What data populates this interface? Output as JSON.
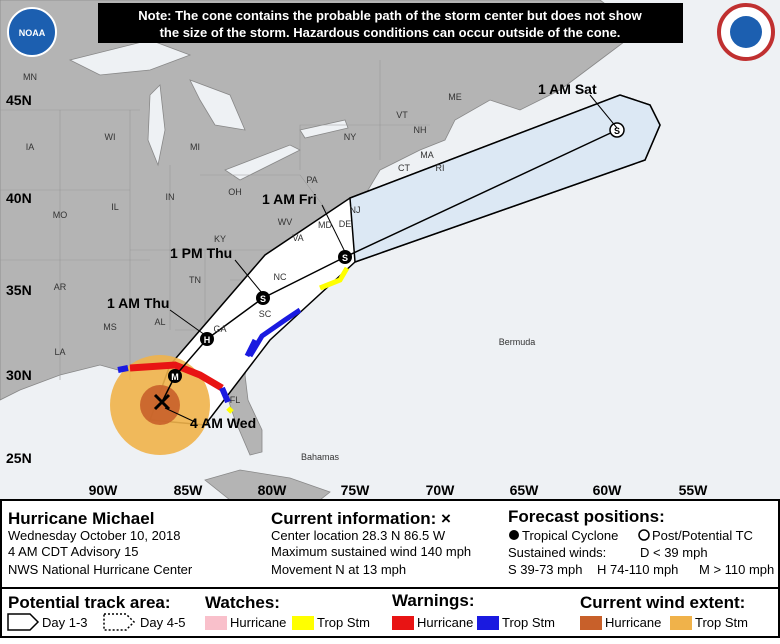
{
  "note": [
    "Note: The cone contains the probable path of the storm center but does not show",
    "the size of the storm. Hazardous conditions can occur outside of the cone."
  ],
  "logos": {
    "noaa": "NOAA"
  },
  "map": {
    "lat_labels": [
      "45N",
      "40N",
      "35N",
      "30N",
      "25N"
    ],
    "lon_labels": [
      "90W",
      "85W",
      "80W",
      "75W",
      "70W",
      "65W",
      "60W",
      "55W"
    ],
    "state_labels": [
      "MN",
      "IA",
      "WI",
      "MI",
      "IL",
      "IN",
      "OH",
      "PA",
      "NY",
      "VT",
      "NH",
      "ME",
      "MA",
      "CT",
      "RI",
      "NJ",
      "DE",
      "MD",
      "WV",
      "VA",
      "KY",
      "MO",
      "TN",
      "NC",
      "SC",
      "GA",
      "AL",
      "MS",
      "AR",
      "LA",
      "FL"
    ],
    "places": [
      "Bermuda",
      "Bahamas"
    ],
    "forecast_times": [
      "1 AM Sat",
      "1 AM Fri",
      "1 PM Thu",
      "1 AM Thu",
      "4 AM Wed"
    ],
    "points": [
      "M",
      "H",
      "S",
      "S",
      "S"
    ]
  },
  "storm": {
    "name": "Hurricane Michael",
    "date": "Wednesday October 10, 2018",
    "advisory": "4 AM CDT Advisory 15",
    "center": "NWS National Hurricane Center"
  },
  "current": {
    "title": "Current information: ×",
    "lines": [
      "Center location 28.3 N 86.5 W",
      "Maximum sustained wind 140 mph",
      "Movement N at 13 mph"
    ]
  },
  "forecast": {
    "title": "Forecast positions:",
    "tropical": "Tropical Cyclone",
    "post": "Post/Potential TC",
    "winds_title": "Sustained winds:",
    "d": "D < 39 mph",
    "s": "S 39-73 mph",
    "h": "H 74-110 mph",
    "m": "M > 110 mph"
  },
  "legend": {
    "track_title": "Potential track area:",
    "day13": "Day 1-3",
    "day45": "Day 4-5",
    "watches_title": "Watches:",
    "watch_hurricane": "Hurricane",
    "watch_ts": "Trop Stm",
    "warnings_title": "Warnings:",
    "warn_hurricane": "Hurricane",
    "warn_ts": "Trop Stm",
    "wind_title": "Current wind extent:",
    "wind_hurricane": "Hurricane",
    "wind_ts": "Trop Stm"
  }
}
